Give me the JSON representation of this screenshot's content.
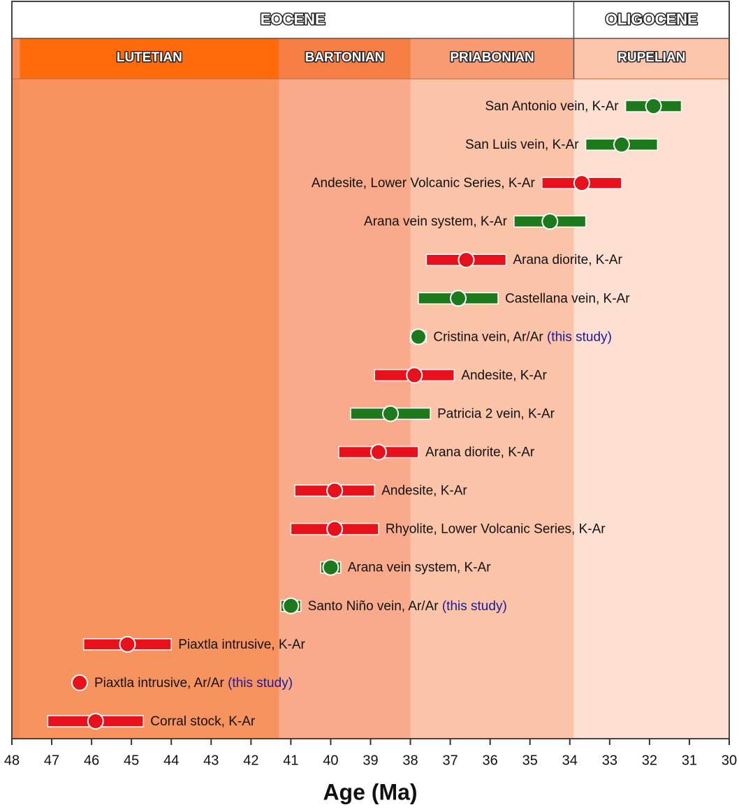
{
  "chart_data": {
    "type": "dot-errorbar",
    "xlabel": "Age (Ma)",
    "xlim": [
      48,
      30
    ],
    "xticks": [
      48,
      47,
      46,
      45,
      44,
      43,
      42,
      41,
      40,
      39,
      38,
      37,
      36,
      35,
      34,
      33,
      32,
      31,
      30
    ],
    "epochs": [
      {
        "name": "EOCENE",
        "start": 48,
        "end": 33.9
      },
      {
        "name": "OLIGOCENE",
        "start": 33.9,
        "end": 30
      }
    ],
    "stages": [
      {
        "name": "LUTETIAN",
        "start": 47.8,
        "end": 41.3,
        "color": "#ff6a0a",
        "fill": "#f7935f"
      },
      {
        "name": "BARTONIAN",
        "start": 41.3,
        "end": 38.0,
        "color": "#f57e45",
        "fill": "#f9aa8a"
      },
      {
        "name": "PRIABONIAN",
        "start": 38.0,
        "end": 33.9,
        "color": "#f89a72",
        "fill": "#fbc3a8"
      },
      {
        "name": "RUPELIAN",
        "start": 33.9,
        "end": 30,
        "color": "#fbc5ac",
        "fill": "#fde0d2"
      }
    ],
    "categories": [
      "San Antonio vein, K-Ar",
      "San Luis vein, K-Ar",
      "Andesite, Lower Volcanic Series, K-Ar",
      "Arana vein system, K-Ar",
      "Arana diorite, K-Ar",
      "Castellana vein, K-Ar",
      "Cristina vein, Ar/Ar",
      "Andesite, K-Ar",
      "Patricia 2 vein, K-Ar",
      "Arana diorite, K-Ar",
      "Andesite, K-Ar",
      "Rhyolite, Lower Volcanic Series, K-Ar",
      "Arana vein system, K-Ar",
      "Santo Niño vein, Ar/Ar",
      "Piaxtla intrusive, K-Ar",
      "Piaxtla intrusive, Ar/Ar",
      "Corral stock, K-Ar"
    ],
    "notes": [
      null,
      null,
      null,
      null,
      null,
      null,
      "(this study)",
      null,
      null,
      null,
      null,
      null,
      null,
      "(this study)",
      null,
      "(this study)",
      null
    ],
    "values": [
      31.9,
      32.7,
      33.7,
      34.5,
      36.6,
      36.8,
      37.8,
      37.9,
      38.5,
      38.8,
      39.9,
      39.9,
      40.0,
      41.0,
      45.1,
      46.3,
      45.9
    ],
    "errors": [
      0.7,
      0.9,
      1.0,
      0.9,
      1.0,
      1.0,
      0.2,
      1.0,
      1.0,
      1.0,
      1.0,
      1.1,
      0.25,
      0.25,
      1.1,
      0.1,
      1.2
    ],
    "colors": [
      "#1c7a1c",
      "#1c7a1c",
      "#e8101a",
      "#1c7a1c",
      "#e8101a",
      "#1c7a1c",
      "#1c7a1c",
      "#e8101a",
      "#1c7a1c",
      "#e8101a",
      "#e8101a",
      "#e8101a",
      "#1c7a1c",
      "#1c7a1c",
      "#e8101a",
      "#e8101a",
      "#e8101a"
    ],
    "note_color": "#1a1a9a"
  }
}
